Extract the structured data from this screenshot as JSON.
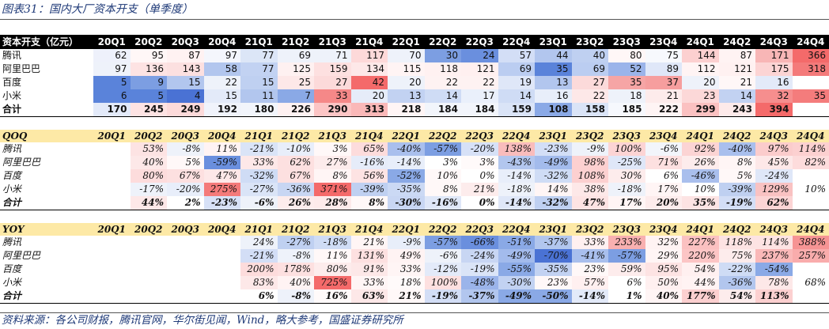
{
  "title": "图表31：国内大厂资本开支（单季度）",
  "source": "资料来源：各公司财报，腾讯官网，华尔街见闻，Wind，略大参考，国盛证券研究所",
  "quarters": [
    "20Q1",
    "20Q2",
    "20Q3",
    "20Q4",
    "21Q1",
    "21Q2",
    "21Q3",
    "21Q4",
    "22Q1",
    "22Q2",
    "22Q3",
    "22Q4",
    "23Q1",
    "23Q2",
    "23Q3",
    "23Q4",
    "24Q1",
    "24Q2",
    "24Q3",
    "24Q4"
  ],
  "tables": [
    {
      "header": "资本开支（亿元）",
      "rows": [
        {
          "label": "腾讯",
          "values": [
            "62",
            "95",
            "87",
            "97",
            "77",
            "69",
            "71",
            "117",
            "70",
            "30",
            "24",
            "57",
            "44",
            "40",
            "80",
            "75",
            "144",
            "87",
            "171",
            "366"
          ]
        },
        {
          "label": "阿里巴巴",
          "values": [
            "97",
            "136",
            "143",
            "58",
            "77",
            "125",
            "159",
            "134",
            "115",
            "118",
            "121",
            "69",
            "35",
            "69",
            "52",
            "89",
            "112",
            "121",
            "175",
            "318"
          ]
        },
        {
          "label": "百度",
          "values": [
            "5",
            "9",
            "15",
            "22",
            "15",
            "25",
            "27",
            "42",
            "20",
            "22",
            "22",
            "19",
            "13",
            "27",
            "35",
            "37",
            "20",
            "21",
            "16",
            ""
          ]
        },
        {
          "label": "小米",
          "values": [
            "6",
            "5",
            "4",
            "15",
            "11",
            "7",
            "33",
            "20",
            "13",
            "14",
            "17",
            "14",
            "16",
            "22",
            "18",
            "21",
            "23",
            "14",
            "32",
            "35"
          ]
        },
        {
          "label": "合计",
          "values": [
            "170",
            "245",
            "249",
            "192",
            "180",
            "226",
            "290",
            "313",
            "218",
            "184",
            "184",
            "159",
            "108",
            "158",
            "185",
            "222",
            "299",
            "243",
            "394",
            ""
          ],
          "total": true
        }
      ],
      "colors": [
        [
          "#eef1fb",
          "#fff7f7",
          "#fff2f2",
          "#f4f6fc",
          "#dce6f7",
          "#eef2fa",
          "#eef2fa",
          "#fdd9d9",
          "#eef2fa",
          "#7c9ee2",
          "#6a8fde",
          "#d3def6",
          "#b2c6ee",
          "#bfd0f1",
          "#fff7f7",
          "#f7f9fd",
          "#fcd0d0",
          "#fff3f3",
          "#f8b6b6",
          "#f46a6a"
        ],
        [
          "#eef2fa",
          "#fde3e3",
          "#fce0e0",
          "#b2c6ee",
          "#c2d2f2",
          "#fef1f1",
          "#fde0e0",
          "#fde8e8",
          "#fff4f4",
          "#fff1f1",
          "#fff0f0",
          "#bbcdf1",
          "#5a83da",
          "#bbcdf1",
          "#9bb4ea",
          "#dfe7f8",
          "#fff4f4",
          "#fff1f1",
          "#fcd4d4",
          "#f47a7a"
        ],
        [
          "#5a83da",
          "#7c9ee2",
          "#b2c6ee",
          "#eef2fa",
          "#bfd0f1",
          "#fde8e8",
          "#fcdada",
          "#f46a6a",
          "#eef2fa",
          "#fef2f2",
          "#fef2f2",
          "#dfe7f8",
          "#b2c6ee",
          "#fcdada",
          "#f6a5a5",
          "#f69e9e",
          "#eef2fa",
          "#fff7f7",
          "#e3eaf9",
          "#ffffff"
        ],
        [
          "#5a83da",
          "#5a83da",
          "#4a72d4",
          "#e3eaf9",
          "#b2c6ee",
          "#8aa9e6",
          "#f58888",
          "#e6ecf9",
          "#c2d2f2",
          "#cfdcf5",
          "#eaf0fb",
          "#cfdcf5",
          "#e8eefa",
          "#fde8e8",
          "#eef2fa",
          "#fdebeb",
          "#fcd8d8",
          "#c2d2f2",
          "#f68e8e",
          "#f47c7c"
        ],
        [
          "#e3eaf9",
          "#fde3e3",
          "#fcdada",
          "#f0f3fb",
          "#f2f5fb",
          "#fef1f1",
          "#fcc5c5",
          "#fab8b8",
          "#fff5f5",
          "#f2f5fb",
          "#f2f5fb",
          "#dae4f7",
          "#8aa9e6",
          "#dae4f7",
          "#f6f8fd",
          "#fef4f4",
          "#fbc1c1",
          "#fdeaea",
          "#f46a6a",
          "#ffffff"
        ]
      ]
    },
    {
      "header": "QOQ",
      "rows": [
        {
          "label": "腾讯",
          "values": [
            "",
            "53%",
            "-8%",
            "11%",
            "-21%",
            "-10%",
            "3%",
            "65%",
            "-40%",
            "-57%",
            "-20%",
            "138%",
            "-23%",
            "-9%",
            "100%",
            "-6%",
            "92%",
            "-40%",
            "97%",
            "114%"
          ]
        },
        {
          "label": "阿里巴巴",
          "values": [
            "",
            "40%",
            "5%",
            "-59%",
            "33%",
            "62%",
            "27%",
            "-16%",
            "-14%",
            "3%",
            "3%",
            "-43%",
            "-49%",
            "98%",
            "-25%",
            "71%",
            "26%",
            "8%",
            "45%",
            "82%"
          ]
        },
        {
          "label": "百度",
          "values": [
            "",
            "80%",
            "67%",
            "47%",
            "-32%",
            "67%",
            "8%",
            "56%",
            "-52%",
            "10%",
            "0%",
            "-14%",
            "-32%",
            "108%",
            "30%",
            "6%",
            "-46%",
            "5%",
            "-24%",
            ""
          ]
        },
        {
          "label": "小米",
          "values": [
            "",
            "-17%",
            "-20%",
            "275%",
            "-27%",
            "-36%",
            "371%",
            "-39%",
            "-35%",
            "8%",
            "21%",
            "-18%",
            "14%",
            "38%",
            "-18%",
            "17%",
            "10%",
            "-39%",
            "129%",
            "10%"
          ]
        },
        {
          "label": "合计",
          "values": [
            "",
            "44%",
            "2%",
            "-23%",
            "-6%",
            "26%",
            "28%",
            "8%",
            "-30%",
            "-16%",
            "0%",
            "-14%",
            "-32%",
            "47%",
            "17%",
            "20%",
            "35%",
            "-19%",
            "62%",
            ""
          ],
          "total": true
        }
      ],
      "colors": [
        [
          "#ffffff",
          "#fde3e3",
          "#eef2fa",
          "#fff3f3",
          "#dae4f7",
          "#e8eefa",
          "#fff8f8",
          "#fddcdc",
          "#a9bfed",
          "#7c9ee2",
          "#d7e1f7",
          "#f9bcbc",
          "#d3def6",
          "#eef2fa",
          "#fcd4d4",
          "#f2f5fb",
          "#fcd4d4",
          "#a9bfed",
          "#fbcccc",
          "#fcd0d0"
        ],
        [
          "#ffffff",
          "#fde8e8",
          "#fff8f8",
          "#6a8fde",
          "#fde8e8",
          "#fde0e0",
          "#fdecec",
          "#e6ecf9",
          "#e8eefa",
          "#ffffff",
          "#fffafa",
          "#b2c6ee",
          "#a3bbec",
          "#fcd0d0",
          "#dfe7f8",
          "#fde0e0",
          "#fdecec",
          "#fff5f5",
          "#fde8e8",
          "#fddcdc"
        ],
        [
          "#ffffff",
          "#fddcdc",
          "#fde0e0",
          "#fde8e8",
          "#cfdcf5",
          "#fde0e0",
          "#fff5f5",
          "#fde3e3",
          "#8aa9e6",
          "#fff8f8",
          "#ffffff",
          "#e8eefa",
          "#cfdcf5",
          "#fcd0d0",
          "#fdecec",
          "#ffffff",
          "#a9bfed",
          "#fff8f8",
          "#dfe7f8",
          "#ffffff"
        ],
        [
          "#ffffff",
          "#eef2fa",
          "#e8eefa",
          "#f47a7a",
          "#dae4f7",
          "#c8d6f3",
          "#f46a6a",
          "#bfd0f1",
          "#cbd9f4",
          "#fff8f8",
          "#fdecec",
          "#eef2fa",
          "#fff5f5",
          "#fde8e8",
          "#eef2fa",
          "#fff5f5",
          "#ffffff",
          "#bfd0f1",
          "#f9c2c2",
          "#ffffff"
        ],
        [
          "#ffffff",
          "#fde8e8",
          "#ffffff",
          "#d7e1f7",
          "#eef2fa",
          "#fdecec",
          "#fdeaea",
          "#fff8f8",
          "#c8d6f3",
          "#dfe7f8",
          "#ffffff",
          "#dfe7f8",
          "#bfd0f1",
          "#fde3e3",
          "#fff5f5",
          "#fdecec",
          "#fde3e3",
          "#d3def6",
          "#fcd4d4",
          "#ffffff"
        ]
      ]
    },
    {
      "header": "YOY",
      "rows": [
        {
          "label": "腾讯",
          "values": [
            "",
            "",
            "",
            "",
            "24%",
            "-27%",
            "-18%",
            "21%",
            "-9%",
            "-57%",
            "-66%",
            "-51%",
            "-37%",
            "33%",
            "233%",
            "32%",
            "227%",
            "118%",
            "114%",
            "388%"
          ]
        },
        {
          "label": "阿里巴巴",
          "values": [
            "",
            "",
            "",
            "",
            "-21%",
            "-8%",
            "11%",
            "131%",
            "49%",
            "-6%",
            "-24%",
            "-49%",
            "-70%",
            "-41%",
            "-57%",
            "29%",
            "220%",
            "75%",
            "237%",
            "257%"
          ]
        },
        {
          "label": "百度",
          "values": [
            "",
            "",
            "",
            "",
            "200%",
            "178%",
            "80%",
            "91%",
            "33%",
            "-12%",
            "-19%",
            "-55%",
            "-35%",
            "23%",
            "59%",
            "95%",
            "54%",
            "-22%",
            "-54%",
            ""
          ]
        },
        {
          "label": "小米",
          "values": [
            "",
            "",
            "",
            "",
            "83%",
            "40%",
            "725%",
            "33%",
            "18%",
            "100%",
            "-48%",
            "-30%",
            "23%",
            "57%",
            "6%",
            "50%",
            "44%",
            "-36%",
            "78%",
            "68%"
          ]
        },
        {
          "label": "合计",
          "values": [
            "",
            "",
            "",
            "",
            "6%",
            "-8%",
            "16%",
            "63%",
            "21%",
            "-19%",
            "-37%",
            "-49%",
            "-50%",
            "-14%",
            "1%",
            "40%",
            "177%",
            "54%",
            "113%",
            ""
          ],
          "total": true
        }
      ],
      "colors": [
        [
          "#ffffff",
          "#ffffff",
          "#ffffff",
          "#ffffff",
          "#eef2fa",
          "#bfd0f1",
          "#cfdcf5",
          "#fff5f5",
          "#e8eefa",
          "#7c9ee2",
          "#6a8fde",
          "#8aa9e6",
          "#b2c6ee",
          "#fff0f0",
          "#f8b0b0",
          "#fff3f3",
          "#fbc1c1",
          "#fde3e3",
          "#fde3e3",
          "#f69494"
        ],
        [
          "#ffffff",
          "#ffffff",
          "#ffffff",
          "#ffffff",
          "#d3def6",
          "#eef2fa",
          "#fff8f8",
          "#fde0e0",
          "#fff3f3",
          "#eef2fa",
          "#c8d6f3",
          "#a3bbec",
          "#4a72d4",
          "#a9bfed",
          "#7c9ee2",
          "#fff5f5",
          "#fcc5c5",
          "#fdecec",
          "#fab8b8",
          "#f9acac"
        ],
        [
          "#ffffff",
          "#ffffff",
          "#ffffff",
          "#ffffff",
          "#fddcdc",
          "#fde0e0",
          "#fdecec",
          "#fde8e8",
          "#fff5f5",
          "#e3eaf9",
          "#dae4f7",
          "#8aa9e6",
          "#c2d2f2",
          "#fff8f8",
          "#fdecec",
          "#fde3e3",
          "#fff0f0",
          "#cfdcf5",
          "#8aa9e6",
          "#ffffff"
        ],
        [
          "#ffffff",
          "#ffffff",
          "#ffffff",
          "#ffffff",
          "#fde8e8",
          "#fff3f3",
          "#f46a6a",
          "#fff5f5",
          "#fffafa",
          "#fde0e0",
          "#9bb4ea",
          "#c2d2f2",
          "#fff8f8",
          "#fff0f0",
          "#ffffff",
          "#fff0f0",
          "#fff3f3",
          "#b2c6ee",
          "#fde8e8",
          "#ffffff"
        ],
        [
          "#ffffff",
          "#ffffff",
          "#ffffff",
          "#ffffff",
          "#ffffff",
          "#eef2fa",
          "#fffafa",
          "#fde8e8",
          "#fff8f8",
          "#d3def6",
          "#b2c6ee",
          "#8aa9e6",
          "#8aa9e6",
          "#e3eaf9",
          "#ffffff",
          "#fff5f5",
          "#fcd0d0",
          "#fdecec",
          "#fcd0d0",
          "#ffffff"
        ]
      ]
    }
  ]
}
